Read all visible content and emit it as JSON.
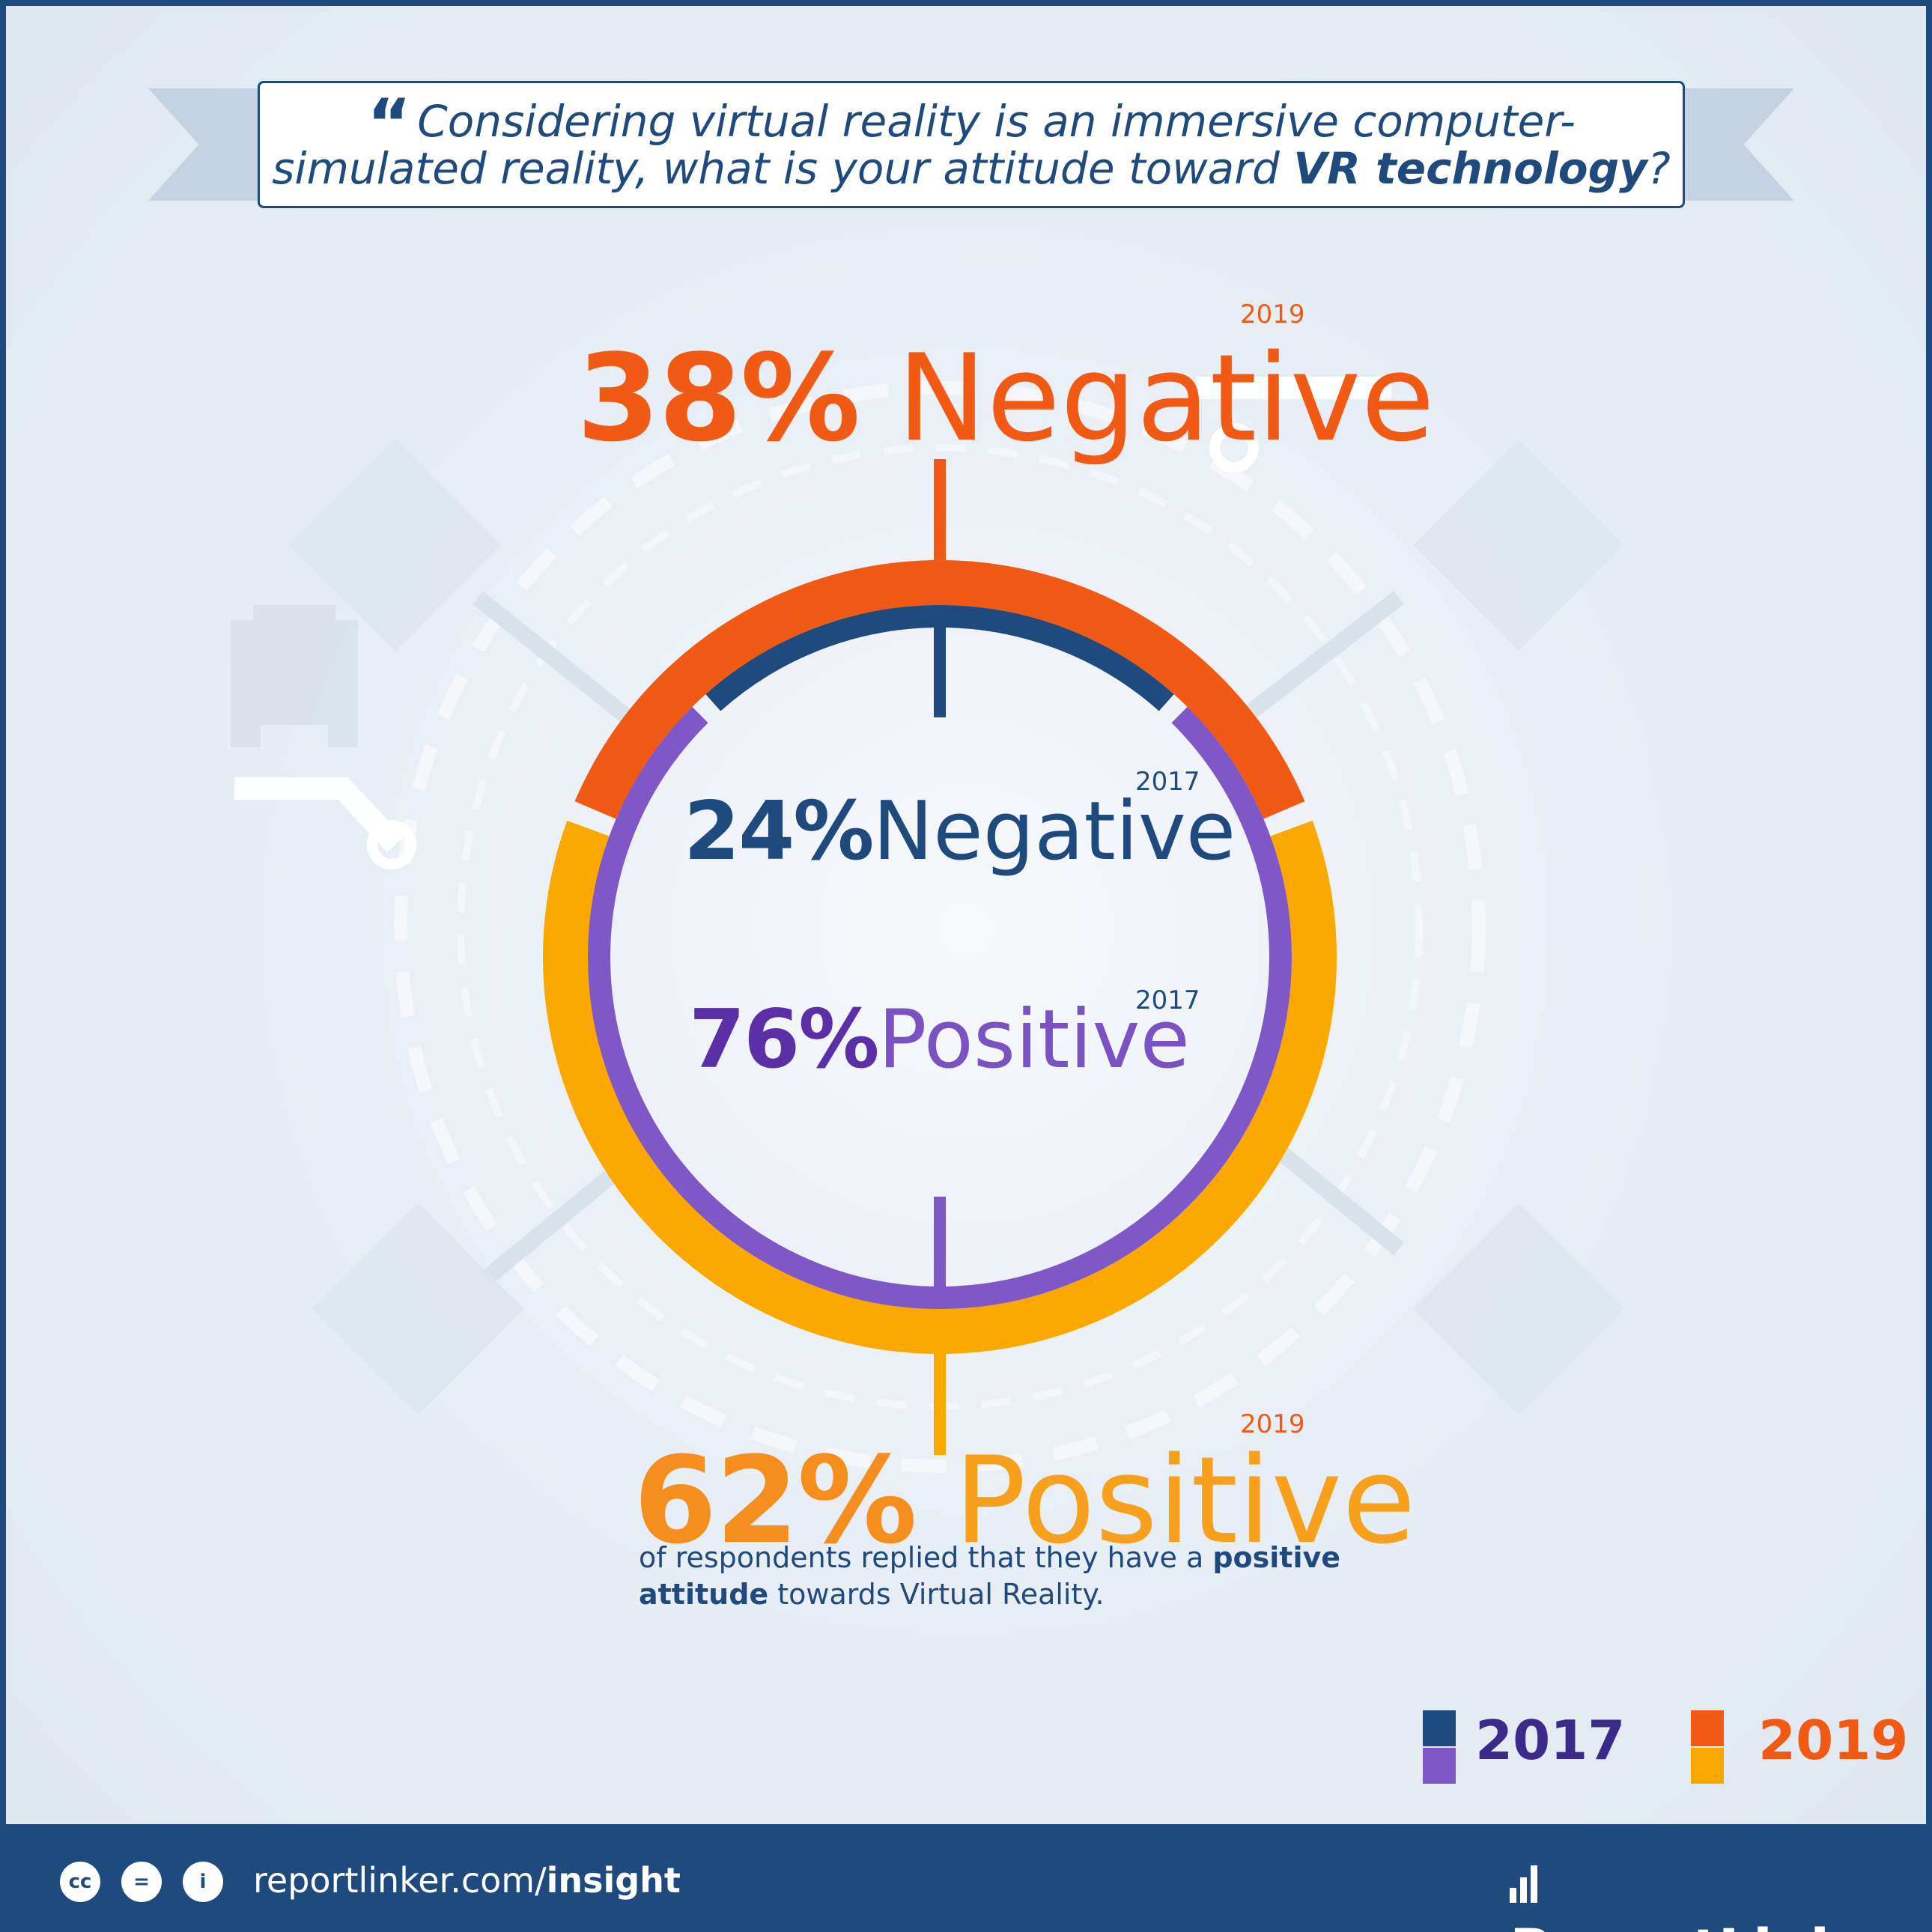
{
  "question": {
    "part1": "Considering virtual reality is an immersive computer-simulated reality, what is your attitude toward ",
    "emphasis": "VR technology",
    "part2": "?"
  },
  "colors": {
    "negative_2019": "#f15a15",
    "positive_2019": "#fba800",
    "negative_2017": "#1f4a7e",
    "positive_2017": "#7f57c6",
    "navy": "#1f4a7e"
  },
  "stats": {
    "neg_2019": {
      "num": "38%",
      "label": "Negative",
      "year": "2019"
    },
    "neg_2017": {
      "num": "24%",
      "label": "Negative",
      "year": "2017"
    },
    "pos_2017": {
      "num": "76%",
      "label": "Positive",
      "year": "2017"
    },
    "pos_2019": {
      "num": "62%",
      "label": "Positive",
      "year": "2019"
    }
  },
  "caption": {
    "part1": "of respondents replied that they have a ",
    "bold1": "positive attitude",
    "part2": " towards Virtual Reality."
  },
  "chart_data": {
    "type": "pie",
    "series": [
      {
        "name": "2017",
        "categories": [
          "Negative",
          "Positive"
        ],
        "values": [
          24,
          76
        ],
        "colors": [
          "#1f4a7e",
          "#7f57c6"
        ]
      },
      {
        "name": "2019",
        "categories": [
          "Negative",
          "Positive"
        ],
        "values": [
          38,
          62
        ],
        "colors": [
          "#f15a15",
          "#fba800"
        ]
      }
    ],
    "legend": [
      "2017",
      "2019"
    ],
    "legend_position": "bottom-right"
  },
  "legend": {
    "label_2017": "2017",
    "label_2019": "2019"
  },
  "footer": {
    "cc_icons": [
      "cc",
      "=",
      "i"
    ],
    "url_part": "reportlinker.com/",
    "url_bold": "insight",
    "brand": "ReportLinker"
  }
}
